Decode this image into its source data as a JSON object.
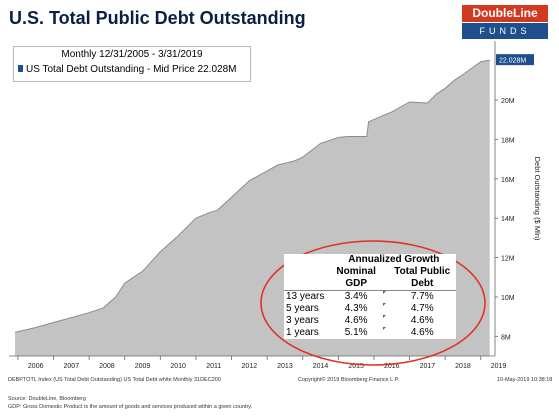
{
  "title": "U.S. Total Public Debt Outstanding",
  "logo": {
    "top": "DoubleLine",
    "bottom": "FUNDS"
  },
  "info_box": {
    "period": "Monthly 12/31/2005 - 3/31/2019",
    "series_label": "US Total Debt Outstanding - Mid Price 22.028M"
  },
  "colors": {
    "area": "#c3c3c3",
    "area_line": "#8c8c8c",
    "highlight": "#e0312a",
    "legend_blue": "#1f4e8c"
  },
  "chart_data": {
    "type": "area",
    "title": "",
    "ylabel": "Debt Outstanding ($ Mln)",
    "ylim": [
      7,
      23
    ],
    "y_ticks": [
      8,
      10,
      12,
      14,
      16,
      18,
      20
    ],
    "y_tick_labels": [
      "8M",
      "10M",
      "12M",
      "14M",
      "16M",
      "18M",
      "20M"
    ],
    "last_value_label": "22.028M",
    "x_labels": [
      "2006",
      "2007",
      "2008",
      "2009",
      "2010",
      "2011",
      "2012",
      "2013",
      "2014",
      "2015",
      "2016",
      "2017",
      "2018",
      "2019"
    ],
    "series": [
      {
        "name": "US Total Debt Outstanding - Mid Price",
        "x": [
          2005.92,
          2006.5,
          2007.0,
          2007.5,
          2008.0,
          2008.4,
          2008.75,
          2009.0,
          2009.5,
          2010.0,
          2010.5,
          2011.0,
          2011.4,
          2011.6,
          2011.9,
          2012.5,
          2013.0,
          2013.3,
          2013.75,
          2014.0,
          2014.5,
          2015.0,
          2015.25,
          2015.8,
          2015.85,
          2016.5,
          2017.0,
          2017.5,
          2017.75,
          2018.0,
          2018.25,
          2018.5,
          2019.0,
          2019.25
        ],
        "values": [
          8.2,
          8.45,
          8.7,
          8.95,
          9.2,
          9.45,
          10.0,
          10.7,
          11.3,
          12.3,
          13.1,
          14.0,
          14.3,
          14.4,
          14.9,
          15.9,
          16.4,
          16.7,
          16.9,
          17.1,
          17.8,
          18.1,
          18.15,
          18.15,
          18.9,
          19.4,
          19.9,
          19.85,
          20.3,
          20.6,
          21.0,
          21.3,
          21.95,
          22.028
        ]
      }
    ],
    "grid": false
  },
  "growth_table": {
    "header_title": "Annualized Growth",
    "col1_header_line1": "Nominal",
    "col1_header_line2": "GDP",
    "col2_header_line1": "Total Public",
    "col2_header_line2": "Debt",
    "rows": [
      {
        "period": "13 years",
        "gdp": "3.4%",
        "debt": "7.7%"
      },
      {
        "period": "5 years",
        "gdp": "4.3%",
        "debt": "4.7%"
      },
      {
        "period": "3 years",
        "gdp": "4.6%",
        "debt": "4.6%"
      },
      {
        "period": "1 years",
        "gdp": "5.1%",
        "debt": "4.6%"
      }
    ]
  },
  "footer": {
    "bloomberg_left": "DEBPTOTL Index (US Total Debt Outstanding) US Total Debt white Monthly 31DEC200",
    "bloomberg_center": "Copyright© 2019 Bloomberg Finance L.P.",
    "bloomberg_right": "10-May-2019 10:38:18",
    "source": "Source: DoubleLine, Bloomberg",
    "note": "GDP: Gross Domestic Product is the amount of goods and services produced within a given country."
  }
}
